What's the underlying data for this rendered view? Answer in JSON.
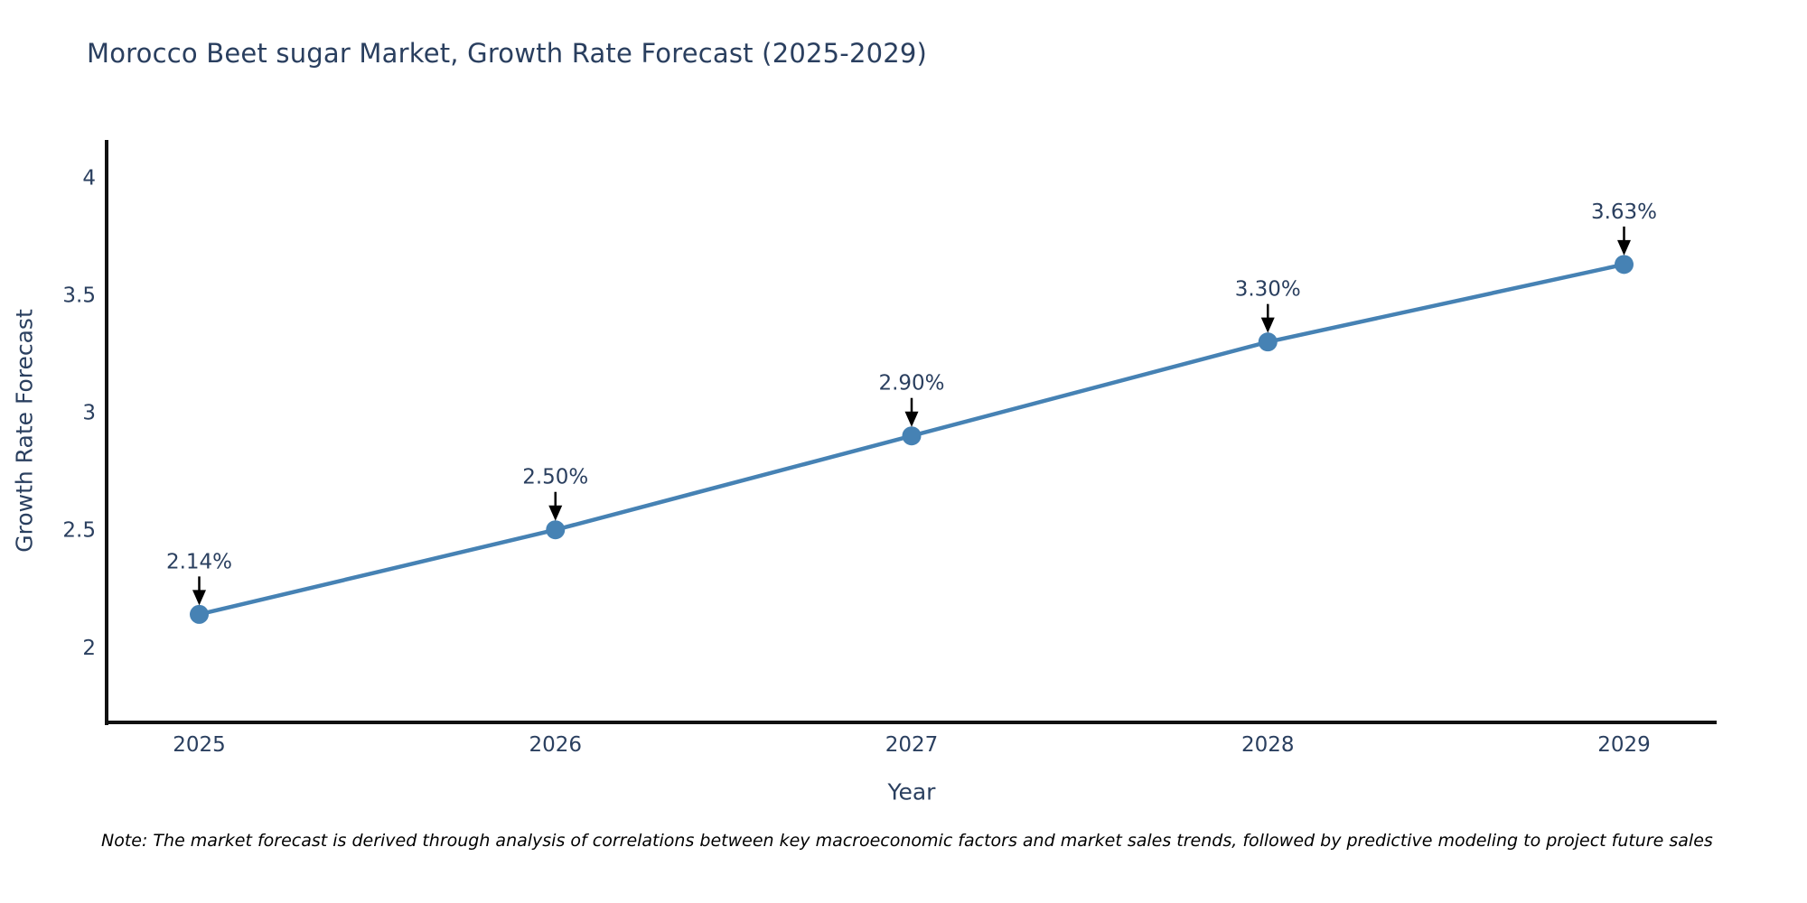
{
  "title": "Morocco Beet sugar Market, Growth Rate Forecast (2025-2029)",
  "note": "Note: The market forecast is derived through analysis of correlations between key macroeconomic factors and market sales trends, followed by predictive modeling to project future sales",
  "chart_data": {
    "type": "line",
    "title": "Morocco Beet sugar Market, Growth Rate Forecast (2025-2029)",
    "x": [
      2025,
      2026,
      2027,
      2028,
      2029
    ],
    "y": [
      2.14,
      2.5,
      2.9,
      3.3,
      3.63
    ],
    "point_labels": [
      "2.14%",
      "2.50%",
      "2.90%",
      "3.30%",
      "3.63%"
    ],
    "xlabel": "Year",
    "ylabel": "Growth Rate Forecast",
    "x_tick_labels": [
      "2025",
      "2026",
      "2027",
      "2028",
      "2029"
    ],
    "y_ticks": [
      2,
      2.5,
      3,
      3.5,
      4
    ],
    "y_tick_labels": [
      "2",
      "2.5",
      "3",
      "3.5",
      "4"
    ],
    "ylim": [
      1.68,
      4.16
    ],
    "xlim": [
      2024.74,
      2029.26
    ],
    "grid": false,
    "legend": false,
    "colors": {
      "line": "#4682b4",
      "marker": "#4682b4",
      "axis": "#111111",
      "text": "#2a3f5f",
      "arrow": "#000000"
    }
  }
}
